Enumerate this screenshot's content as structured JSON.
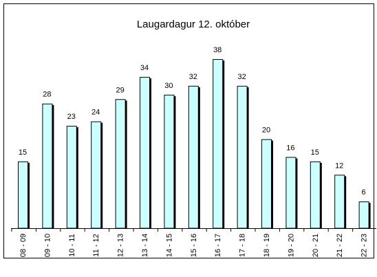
{
  "chart_data": {
    "type": "bar",
    "title": "Laugardagur 12. október",
    "categories": [
      "08 - 09",
      "09 - 10",
      "10 - 11",
      "11 - 12",
      "12 - 13",
      "13 - 14",
      "14 - 15",
      "15 - 16",
      "16 - 17",
      "17 - 18",
      "18 - 19",
      "19 - 20",
      "20 - 21",
      "21 - 22",
      "22 - 23"
    ],
    "values": [
      15,
      28,
      23,
      24,
      29,
      34,
      30,
      32,
      38,
      32,
      20,
      16,
      15,
      12,
      6
    ],
    "color": "#ccffff"
  }
}
